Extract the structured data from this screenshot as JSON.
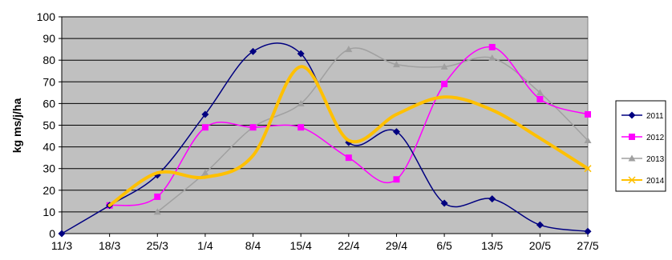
{
  "chart_data": {
    "type": "line",
    "categories": [
      "11/3",
      "18/3",
      "25/3",
      "1/4",
      "8/4",
      "15/4",
      "22/4",
      "29/4",
      "6/5",
      "13/5",
      "20/5",
      "27/5"
    ],
    "ylabel": "kg ms/j/ha",
    "ylim": [
      0,
      100
    ],
    "yticks": [
      "0",
      "10",
      "20",
      "30",
      "40",
      "50",
      "60",
      "70",
      "80",
      "90",
      "100"
    ],
    "grid": true,
    "legend": "right",
    "plot_background": "#c0c0c0",
    "series": [
      {
        "name": "2011",
        "color": "#000080",
        "marker": "diamond",
        "width": 1.5,
        "values": [
          0,
          13,
          27,
          55,
          84,
          83,
          42,
          47,
          14,
          16,
          4,
          1
        ]
      },
      {
        "name": "2012",
        "color": "#ff00ff",
        "marker": "square",
        "width": 1.5,
        "values": [
          null,
          13,
          17,
          49,
          49,
          49,
          35,
          25,
          69,
          86,
          62,
          55
        ]
      },
      {
        "name": "2013",
        "color": "#a0a0a0",
        "marker": "triangle",
        "width": 1.5,
        "values": [
          null,
          null,
          10,
          28,
          49,
          60,
          85,
          78,
          77,
          81,
          65,
          43
        ]
      },
      {
        "name": "2014",
        "color": "#ffc000",
        "marker": "x",
        "width": 4,
        "values": [
          null,
          13,
          28,
          26,
          36,
          77,
          43,
          55,
          63,
          57,
          44,
          30
        ]
      }
    ]
  }
}
